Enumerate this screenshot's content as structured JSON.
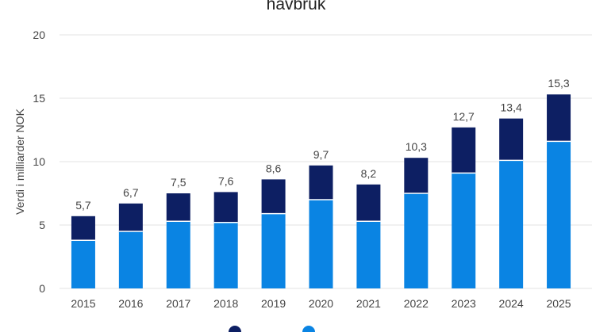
{
  "chart_data": {
    "type": "bar",
    "stacked": true,
    "title": "havbruk",
    "ylabel": "Verdi i milliarder NOK",
    "xlabel": "",
    "ylim": [
      0,
      20
    ],
    "yticks": [
      "0",
      "5",
      "10",
      "15",
      "20"
    ],
    "grid": true,
    "legend_position": "bottom",
    "categories": [
      "2015",
      "2016",
      "2017",
      "2018",
      "2019",
      "2020",
      "2021",
      "2022",
      "2023",
      "2024",
      "2025"
    ],
    "series": [
      {
        "values": [
          3.8,
          4.5,
          5.3,
          5.2,
          5.9,
          7.0,
          5.3,
          7.5,
          9.1,
          10.1,
          11.6
        ],
        "color": "#0a84e3"
      },
      {
        "values": [
          1.9,
          2.2,
          2.2,
          2.4,
          2.7,
          2.7,
          2.9,
          2.8,
          3.6,
          3.3,
          3.7
        ],
        "color": "#0d1f63"
      }
    ],
    "totals": [
      "5,7",
      "6,7",
      "7,5",
      "7,6",
      "8,6",
      "9,7",
      "8,2",
      "10,3",
      "12,7",
      "13,4",
      "15,3"
    ]
  }
}
